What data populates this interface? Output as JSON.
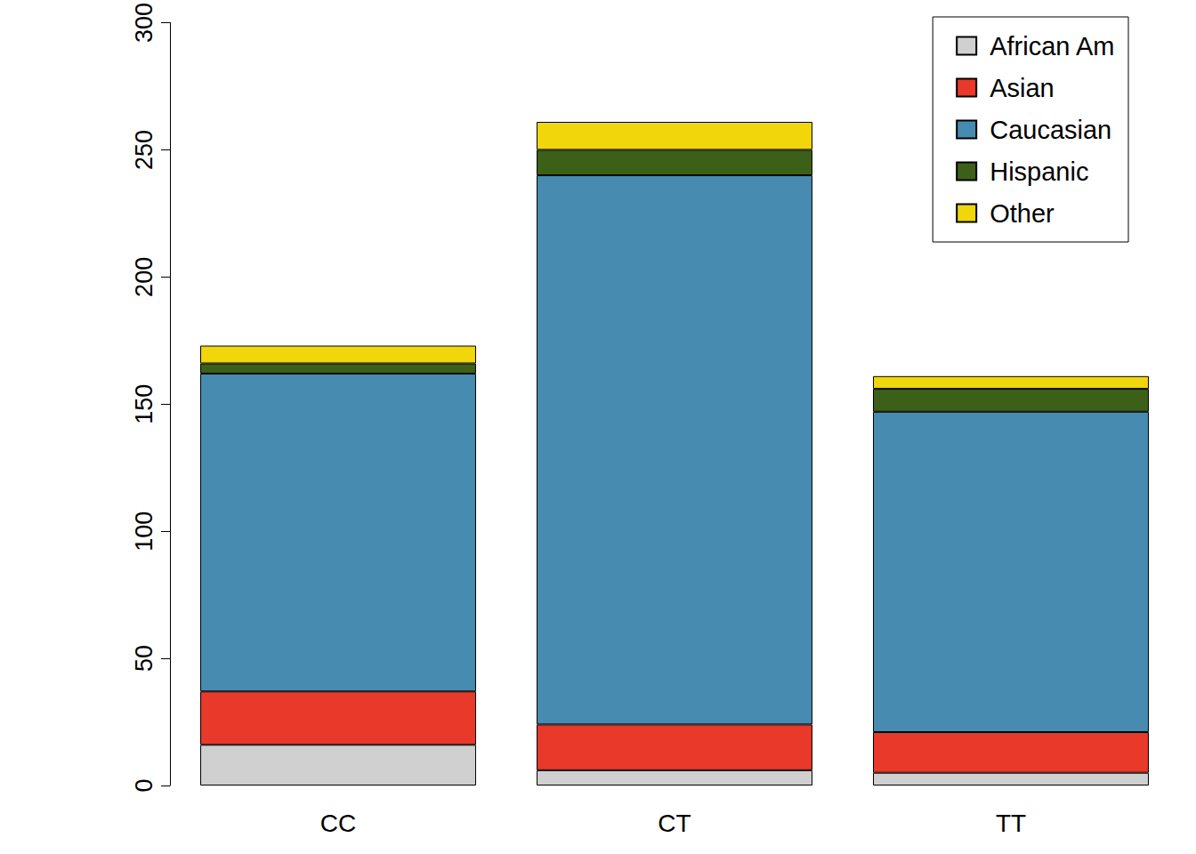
{
  "chart_data": {
    "type": "bar",
    "stacked": true,
    "categories": [
      "CC",
      "CT",
      "TT"
    ],
    "series": [
      {
        "name": "African Am",
        "color": "#d0d0d0",
        "values": [
          16,
          6,
          5
        ]
      },
      {
        "name": "Asian",
        "color": "#e8392a",
        "values": [
          21,
          18,
          16
        ]
      },
      {
        "name": "Caucasian",
        "color": "#478bb0",
        "values": [
          125,
          216,
          126
        ]
      },
      {
        "name": "Hispanic",
        "color": "#3d6019",
        "values": [
          4,
          10,
          9
        ]
      },
      {
        "name": "Other",
        "color": "#f0d60a",
        "values": [
          7,
          11,
          5
        ]
      }
    ],
    "ylim": [
      0,
      300
    ],
    "yticks": [
      0,
      50,
      100,
      150,
      200,
      250,
      300
    ],
    "grid": false,
    "legend": "upper right"
  }
}
